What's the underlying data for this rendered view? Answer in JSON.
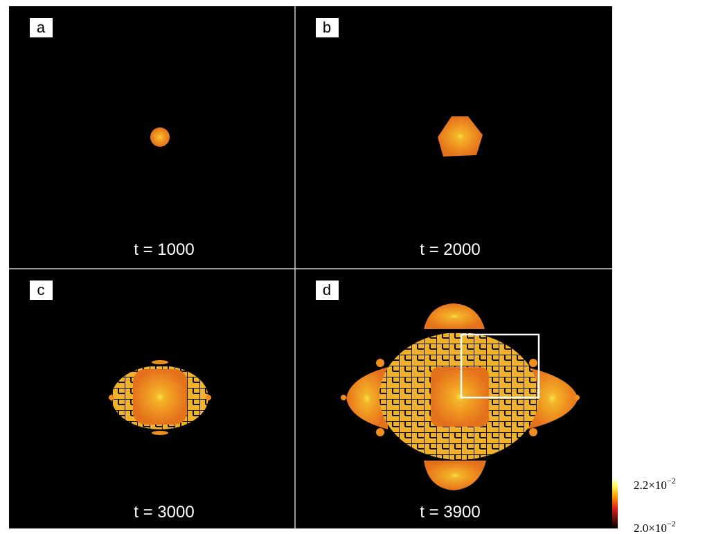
{
  "panels": [
    {
      "label": "a",
      "time": "t = 1000"
    },
    {
      "label": "b",
      "time": "t = 2000"
    },
    {
      "label": "c",
      "time": "t = 3000"
    },
    {
      "label": "d",
      "time": "t = 3900"
    }
  ],
  "colorbar": {
    "max": {
      "mantissa": "2.2×10",
      "exponent": "−2"
    },
    "min": {
      "mantissa": "2.0×10",
      "exponent": "−2"
    }
  }
}
